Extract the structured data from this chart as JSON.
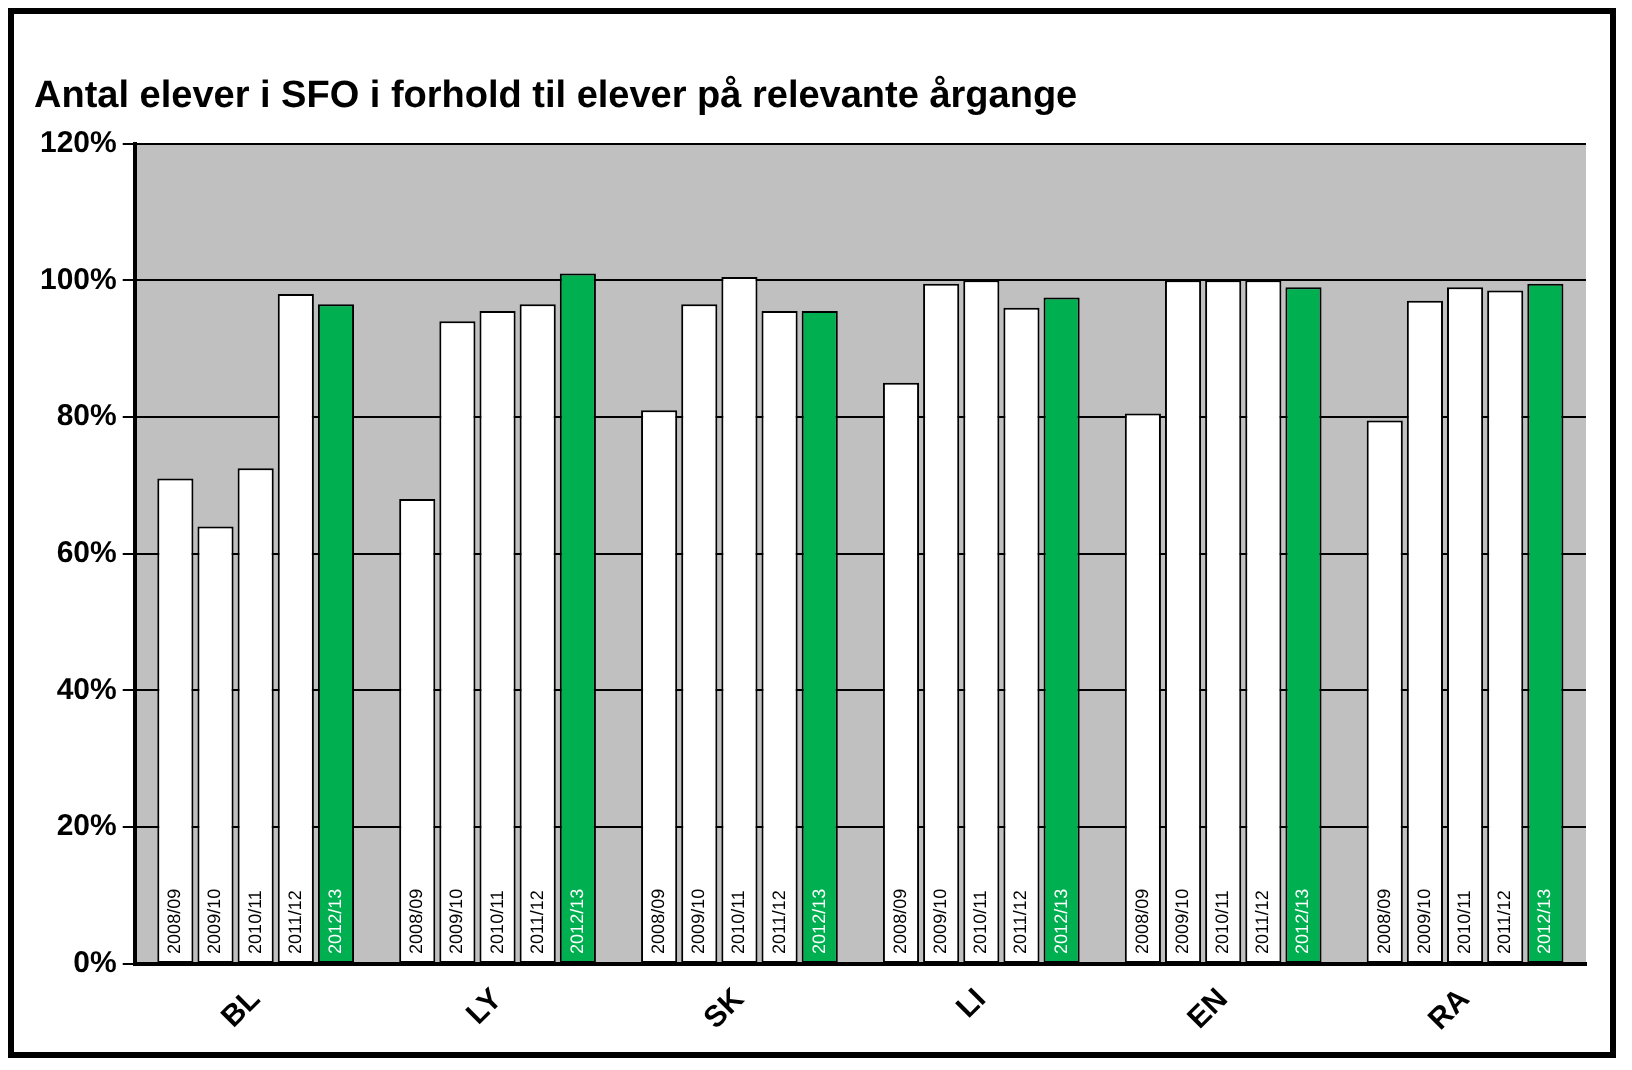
{
  "chart_data": {
    "type": "bar",
    "title": "Antal elever i SFO i forhold til elever på relevante årgange",
    "categories": [
      "BL",
      "LY",
      "SK",
      "LI",
      "EN",
      "RA"
    ],
    "series": [
      {
        "name": "2008/09",
        "color": "#ffffff",
        "values": [
          71,
          68,
          81,
          85,
          80.5,
          79.5
        ]
      },
      {
        "name": "2009/10",
        "color": "#ffffff",
        "values": [
          64,
          94,
          96.5,
          99.5,
          100,
          97
        ]
      },
      {
        "name": "2010/11",
        "color": "#ffffff",
        "values": [
          72.5,
          95.5,
          100.5,
          100,
          100,
          99
        ]
      },
      {
        "name": "2011/12",
        "color": "#ffffff",
        "values": [
          98,
          96.5,
          95.5,
          96,
          100,
          98.5
        ]
      },
      {
        "name": "2012/13",
        "color": "#00b050",
        "values": [
          96.5,
          101,
          95.5,
          97.5,
          99,
          99.5
        ]
      }
    ],
    "ylim": [
      0,
      120
    ],
    "yticks": [
      {
        "value": 0,
        "label": "0%"
      },
      {
        "value": 20,
        "label": "20%"
      },
      {
        "value": 40,
        "label": "40%"
      },
      {
        "value": 60,
        "label": "60%"
      },
      {
        "value": 80,
        "label": "80%"
      },
      {
        "value": 100,
        "label": "100%"
      },
      {
        "value": 120,
        "label": "120%"
      }
    ],
    "grid": "y",
    "legend": false
  }
}
